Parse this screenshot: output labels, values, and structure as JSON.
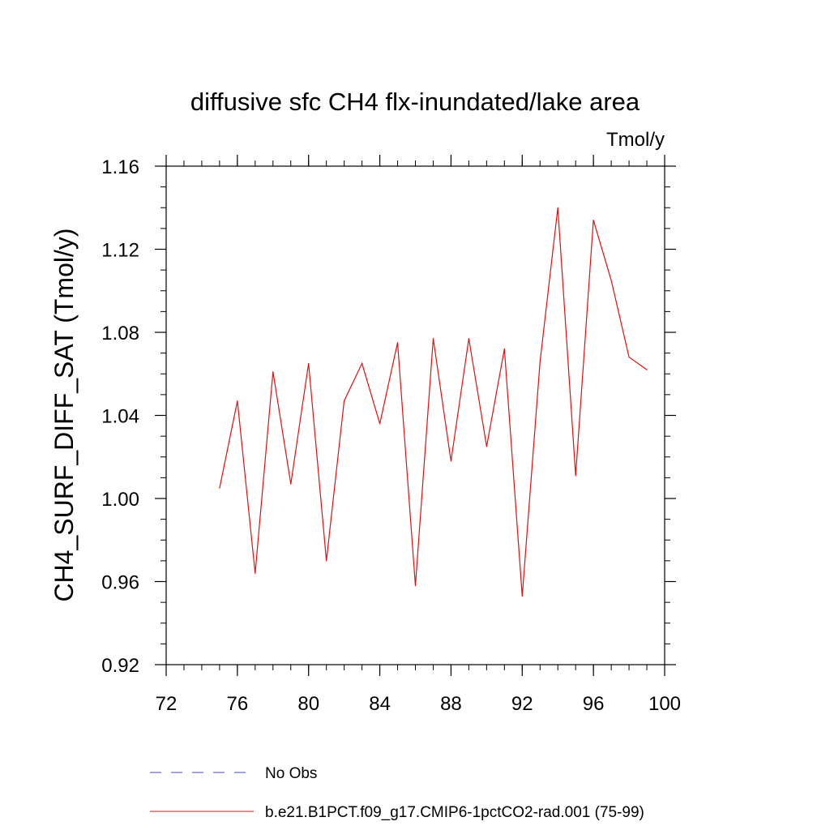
{
  "chart_data": {
    "type": "line",
    "title": "diffusive sfc CH4 flx-inundated/lake area",
    "units": "Tmol/y",
    "ylabel": "CH4_SURF_DIFF_SAT  (Tmol/y)",
    "xlabel": "",
    "xlim": [
      72,
      100
    ],
    "ylim": [
      0.92,
      1.16
    ],
    "x_ticks": [
      "72",
      "76",
      "80",
      "84",
      "88",
      "92",
      "96",
      "100"
    ],
    "y_ticks": [
      "0.92",
      "0.96",
      "1.00",
      "1.04",
      "1.08",
      "1.12",
      "1.16"
    ],
    "x_minor_step": 1,
    "y_minor_step": 0.01,
    "grid": false,
    "legend_position": "bottom",
    "series": [
      {
        "name": "No Obs",
        "color": "#4a4aaa",
        "dash": "dashed",
        "x": [],
        "y": []
      },
      {
        "name": "b.e21.B1PCT.f09_g17.CMIP6-1pctCO2-rad.001 (75-99)",
        "color": "#e01010",
        "dash": "solid",
        "x": [
          75,
          76,
          77,
          78,
          79,
          80,
          81,
          82,
          83,
          84,
          85,
          86,
          87,
          88,
          89,
          90,
          91,
          92,
          93,
          94,
          95,
          96,
          97,
          98,
          99
        ],
        "y": [
          1.005,
          1.047,
          0.964,
          1.061,
          1.007,
          1.065,
          0.97,
          1.047,
          1.065,
          1.036,
          1.075,
          0.958,
          1.077,
          1.018,
          1.077,
          1.025,
          1.072,
          0.953,
          1.066,
          1.14,
          1.011,
          1.134,
          1.105,
          1.068,
          1.062
        ]
      }
    ]
  }
}
